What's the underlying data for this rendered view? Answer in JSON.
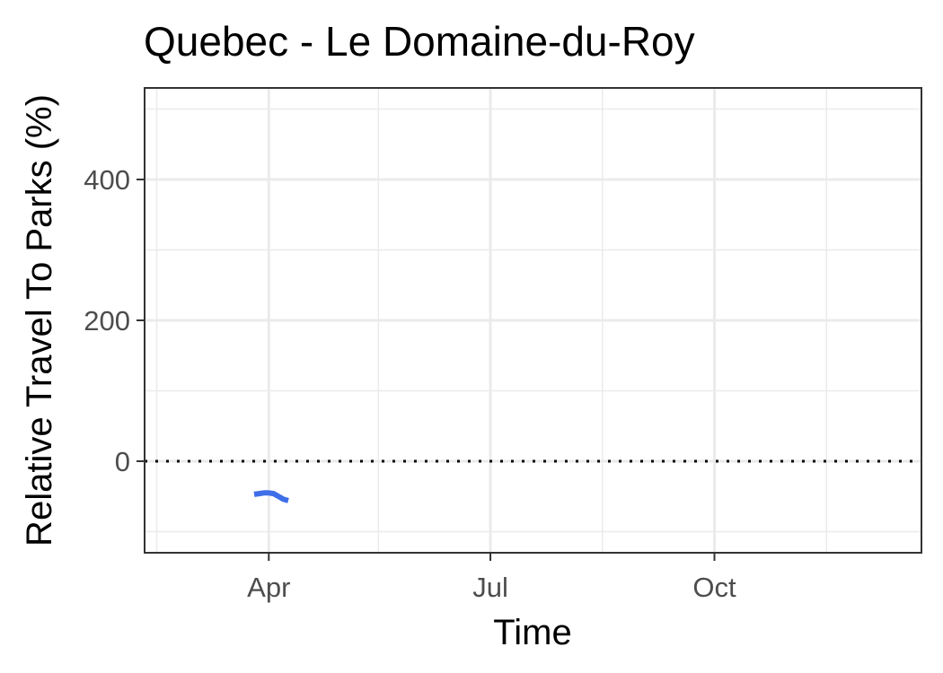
{
  "chart_data": {
    "type": "line",
    "title": "Quebec - Le Domaine-du-Roy",
    "xlabel": "Time",
    "ylabel": "Relative Travel To Parks (%)",
    "x_ticks": [
      "Apr",
      "Jul",
      "Oct"
    ],
    "y_ticks": [
      "0",
      "200",
      "400"
    ],
    "xlim": [
      "2020-02-10",
      "2020-12-25"
    ],
    "ylim": [
      -130,
      530
    ],
    "grid": true,
    "legend": "none",
    "reference_line": {
      "y": 0,
      "style": "dotted"
    },
    "series": [
      {
        "color": "#3e6fe8",
        "points": [
          {
            "x": "2020-03-26",
            "y": -47
          },
          {
            "x": "2020-03-28",
            "y": -46
          },
          {
            "x": "2020-03-30",
            "y": -45
          },
          {
            "x": "2020-04-01",
            "y": -45
          },
          {
            "x": "2020-04-03",
            "y": -46
          },
          {
            "x": "2020-04-05",
            "y": -50
          },
          {
            "x": "2020-04-07",
            "y": -54
          },
          {
            "x": "2020-04-09",
            "y": -56
          }
        ]
      }
    ],
    "colors": {
      "line": "#3e6fe8",
      "grid": "#ebebeb",
      "panel_border": "#333333"
    }
  }
}
